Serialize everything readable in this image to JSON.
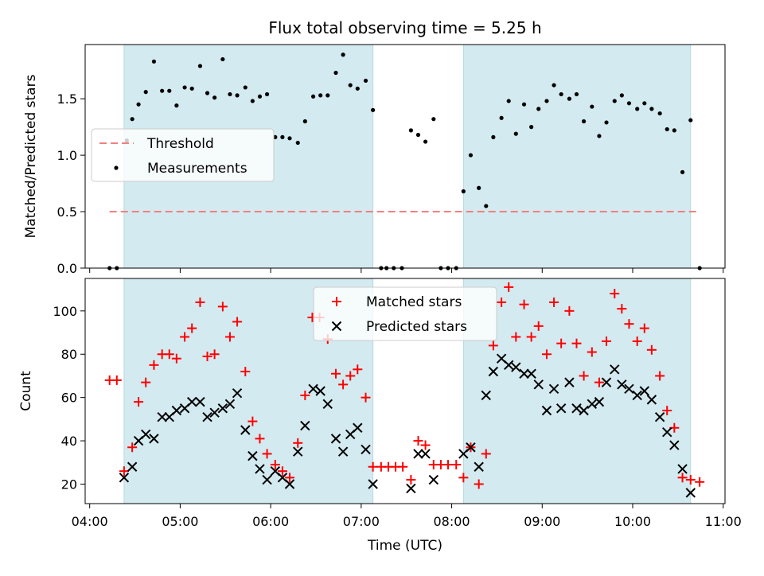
{
  "chart_data": {
    "title": "Flux total observing time = 5.25 h",
    "type": "scatter",
    "x_axis": {
      "label": "Time (UTC)",
      "unit": "hours UTC",
      "range": [
        3.95,
        11.02
      ],
      "ticks": [
        {
          "value": 4,
          "label": "04:00"
        },
        {
          "value": 5,
          "label": "05:00"
        },
        {
          "value": 6,
          "label": "06:00"
        },
        {
          "value": 7,
          "label": "07:00"
        },
        {
          "value": 8,
          "label": "08:00"
        },
        {
          "value": 9,
          "label": "09:00"
        },
        {
          "value": 10,
          "label": "10:00"
        },
        {
          "value": 11,
          "label": "11:00"
        }
      ]
    },
    "shaded_intervals": [
      {
        "start": 4.38,
        "end": 7.13,
        "color": "#d3eaf0"
      },
      {
        "start": 8.13,
        "end": 10.64,
        "color": "#d3eaf0"
      }
    ],
    "top": {
      "ylabel": "Matched/Predicted stars",
      "ylim": [
        0,
        1.98
      ],
      "yticks": [
        {
          "value": 0.0,
          "label": "0.0"
        },
        {
          "value": 0.5,
          "label": "0.5"
        },
        {
          "value": 1.0,
          "label": "1.0"
        },
        {
          "value": 1.5,
          "label": "1.5"
        }
      ],
      "legend": {
        "position": "center-left",
        "items": [
          {
            "label": "Threshold",
            "kind": "dashed-line",
            "color": "#f08080"
          },
          {
            "label": "Measurements",
            "kind": "dot",
            "color": "#000000"
          }
        ]
      },
      "threshold": {
        "value": 0.5,
        "x_start": 4.22,
        "x_end": 10.74,
        "color": "#f08080"
      },
      "measurements": [
        [
          4.22,
          0.0
        ],
        [
          4.3,
          0.0
        ],
        [
          4.41,
          1.13
        ],
        [
          4.47,
          1.32
        ],
        [
          4.54,
          1.45
        ],
        [
          4.62,
          1.56
        ],
        [
          4.71,
          1.83
        ],
        [
          4.8,
          1.57
        ],
        [
          4.88,
          1.57
        ],
        [
          4.96,
          1.44
        ],
        [
          5.05,
          1.6
        ],
        [
          5.13,
          1.59
        ],
        [
          5.22,
          1.79
        ],
        [
          5.3,
          1.55
        ],
        [
          5.38,
          1.51
        ],
        [
          5.47,
          1.85
        ],
        [
          5.55,
          1.54
        ],
        [
          5.63,
          1.53
        ],
        [
          5.72,
          1.6
        ],
        [
          5.8,
          1.48
        ],
        [
          5.88,
          1.52
        ],
        [
          5.96,
          1.54
        ],
        [
          6.05,
          1.16
        ],
        [
          6.13,
          1.16
        ],
        [
          6.21,
          1.15
        ],
        [
          6.3,
          1.11
        ],
        [
          6.38,
          1.3
        ],
        [
          6.47,
          1.52
        ],
        [
          6.55,
          1.53
        ],
        [
          6.63,
          1.53
        ],
        [
          6.72,
          1.73
        ],
        [
          6.8,
          1.89
        ],
        [
          6.88,
          1.62
        ],
        [
          6.96,
          1.59
        ],
        [
          7.05,
          1.66
        ],
        [
          7.13,
          1.4
        ],
        [
          7.22,
          0.0
        ],
        [
          7.28,
          0.0
        ],
        [
          7.36,
          0.0
        ],
        [
          7.45,
          0.0
        ],
        [
          7.55,
          1.22
        ],
        [
          7.63,
          1.18
        ],
        [
          7.71,
          1.12
        ],
        [
          7.8,
          1.32
        ],
        [
          7.88,
          0.0
        ],
        [
          7.96,
          0.0
        ],
        [
          8.05,
          0.0
        ],
        [
          8.13,
          0.68
        ],
        [
          8.21,
          1.0
        ],
        [
          8.3,
          0.71
        ],
        [
          8.38,
          0.55
        ],
        [
          8.46,
          1.16
        ],
        [
          8.55,
          1.33
        ],
        [
          8.63,
          1.48
        ],
        [
          8.71,
          1.19
        ],
        [
          8.8,
          1.45
        ],
        [
          8.88,
          1.25
        ],
        [
          8.96,
          1.41
        ],
        [
          9.05,
          1.48
        ],
        [
          9.13,
          1.62
        ],
        [
          9.21,
          1.54
        ],
        [
          9.3,
          1.5
        ],
        [
          9.38,
          1.54
        ],
        [
          9.46,
          1.3
        ],
        [
          9.55,
          1.43
        ],
        [
          9.63,
          1.17
        ],
        [
          9.71,
          1.29
        ],
        [
          9.8,
          1.48
        ],
        [
          9.88,
          1.53
        ],
        [
          9.96,
          1.46
        ],
        [
          10.05,
          1.41
        ],
        [
          10.13,
          1.46
        ],
        [
          10.21,
          1.41
        ],
        [
          10.3,
          1.37
        ],
        [
          10.38,
          1.23
        ],
        [
          10.46,
          1.22
        ],
        [
          10.55,
          0.85
        ],
        [
          10.64,
          1.31
        ],
        [
          10.74,
          0.0
        ]
      ]
    },
    "bottom": {
      "ylabel": "Count",
      "ylim": [
        11,
        115
      ],
      "yticks": [
        {
          "value": 20,
          "label": "20"
        },
        {
          "value": 40,
          "label": "40"
        },
        {
          "value": 60,
          "label": "60"
        },
        {
          "value": 80,
          "label": "80"
        },
        {
          "value": 100,
          "label": "100"
        }
      ],
      "legend": {
        "position": "top-center",
        "items": [
          {
            "label": "Matched stars",
            "kind": "plus",
            "color": "#ff0000"
          },
          {
            "label": "Predicted stars",
            "kind": "cross",
            "color": "#000000"
          }
        ]
      },
      "series": [
        {
          "name": "Matched stars",
          "marker": "plus",
          "color": "#ff0000",
          "points": [
            [
              4.22,
              68
            ],
            [
              4.3,
              68
            ],
            [
              4.38,
              26
            ],
            [
              4.47,
              37
            ],
            [
              4.54,
              58
            ],
            [
              4.62,
              67
            ],
            [
              4.71,
              75
            ],
            [
              4.8,
              80
            ],
            [
              4.88,
              80
            ],
            [
              4.96,
              78
            ],
            [
              5.05,
              88
            ],
            [
              5.13,
              92
            ],
            [
              5.22,
              104
            ],
            [
              5.3,
              79
            ],
            [
              5.38,
              80
            ],
            [
              5.47,
              102
            ],
            [
              5.55,
              88
            ],
            [
              5.63,
              95
            ],
            [
              5.72,
              72
            ],
            [
              5.8,
              49
            ],
            [
              5.88,
              41
            ],
            [
              5.96,
              34
            ],
            [
              6.05,
              29
            ],
            [
              6.13,
              26
            ],
            [
              6.21,
              23
            ],
            [
              6.3,
              39
            ],
            [
              6.38,
              61
            ],
            [
              6.46,
              97
            ],
            [
              6.54,
              97
            ],
            [
              6.63,
              87
            ],
            [
              6.72,
              71
            ],
            [
              6.8,
              66
            ],
            [
              6.88,
              70
            ],
            [
              6.96,
              73
            ],
            [
              7.05,
              60
            ],
            [
              7.13,
              28
            ],
            [
              7.22,
              28
            ],
            [
              7.3,
              28
            ],
            [
              7.38,
              28
            ],
            [
              7.46,
              28
            ],
            [
              7.55,
              22
            ],
            [
              7.63,
              40
            ],
            [
              7.71,
              38
            ],
            [
              7.8,
              29
            ],
            [
              7.88,
              29
            ],
            [
              7.96,
              29
            ],
            [
              8.05,
              29
            ],
            [
              8.13,
              23
            ],
            [
              8.21,
              37
            ],
            [
              8.3,
              20
            ],
            [
              8.38,
              34
            ],
            [
              8.46,
              84
            ],
            [
              8.55,
              104
            ],
            [
              8.63,
              111
            ],
            [
              8.71,
              88
            ],
            [
              8.8,
              103
            ],
            [
              8.88,
              88
            ],
            [
              8.96,
              93
            ],
            [
              9.05,
              80
            ],
            [
              9.13,
              104
            ],
            [
              9.21,
              85
            ],
            [
              9.3,
              100
            ],
            [
              9.38,
              85
            ],
            [
              9.46,
              70
            ],
            [
              9.55,
              81
            ],
            [
              9.63,
              67
            ],
            [
              9.71,
              86
            ],
            [
              9.8,
              108
            ],
            [
              9.88,
              101
            ],
            [
              9.96,
              94
            ],
            [
              10.05,
              86
            ],
            [
              10.13,
              92
            ],
            [
              10.21,
              82
            ],
            [
              10.3,
              70
            ],
            [
              10.38,
              54
            ],
            [
              10.46,
              46
            ],
            [
              10.55,
              23
            ],
            [
              10.64,
              22
            ],
            [
              10.74,
              21
            ]
          ]
        },
        {
          "name": "Predicted stars",
          "marker": "cross",
          "color": "#000000",
          "points": [
            [
              4.38,
              23
            ],
            [
              4.47,
              28
            ],
            [
              4.54,
              40
            ],
            [
              4.62,
              43
            ],
            [
              4.71,
              41
            ],
            [
              4.8,
              51
            ],
            [
              4.88,
              51
            ],
            [
              4.96,
              54
            ],
            [
              5.05,
              55
            ],
            [
              5.13,
              58
            ],
            [
              5.22,
              58
            ],
            [
              5.3,
              51
            ],
            [
              5.38,
              53
            ],
            [
              5.47,
              55
            ],
            [
              5.55,
              57
            ],
            [
              5.63,
              62
            ],
            [
              5.72,
              45
            ],
            [
              5.8,
              33
            ],
            [
              5.88,
              27
            ],
            [
              5.96,
              22
            ],
            [
              6.05,
              26
            ],
            [
              6.13,
              23
            ],
            [
              6.21,
              20
            ],
            [
              6.3,
              35
            ],
            [
              6.38,
              47
            ],
            [
              6.47,
              64
            ],
            [
              6.55,
              63
            ],
            [
              6.63,
              57
            ],
            [
              6.72,
              41
            ],
            [
              6.8,
              35
            ],
            [
              6.88,
              43
            ],
            [
              6.96,
              46
            ],
            [
              7.05,
              36
            ],
            [
              7.13,
              20
            ],
            [
              7.55,
              18
            ],
            [
              7.63,
              34
            ],
            [
              7.71,
              34
            ],
            [
              7.8,
              22
            ],
            [
              8.13,
              34
            ],
            [
              8.21,
              37
            ],
            [
              8.3,
              28
            ],
            [
              8.38,
              61
            ],
            [
              8.46,
              72
            ],
            [
              8.55,
              78
            ],
            [
              8.63,
              75
            ],
            [
              8.71,
              74
            ],
            [
              8.8,
              71
            ],
            [
              8.88,
              71
            ],
            [
              8.96,
              66
            ],
            [
              9.05,
              54
            ],
            [
              9.13,
              64
            ],
            [
              9.21,
              55
            ],
            [
              9.3,
              67
            ],
            [
              9.38,
              55
            ],
            [
              9.46,
              54
            ],
            [
              9.55,
              57
            ],
            [
              9.63,
              58
            ],
            [
              9.71,
              67
            ],
            [
              9.8,
              73
            ],
            [
              9.88,
              66
            ],
            [
              9.96,
              64
            ],
            [
              10.05,
              61
            ],
            [
              10.13,
              63
            ],
            [
              10.21,
              59
            ],
            [
              10.3,
              51
            ],
            [
              10.38,
              44
            ],
            [
              10.46,
              38
            ],
            [
              10.55,
              27
            ],
            [
              10.64,
              16
            ]
          ]
        }
      ]
    }
  }
}
